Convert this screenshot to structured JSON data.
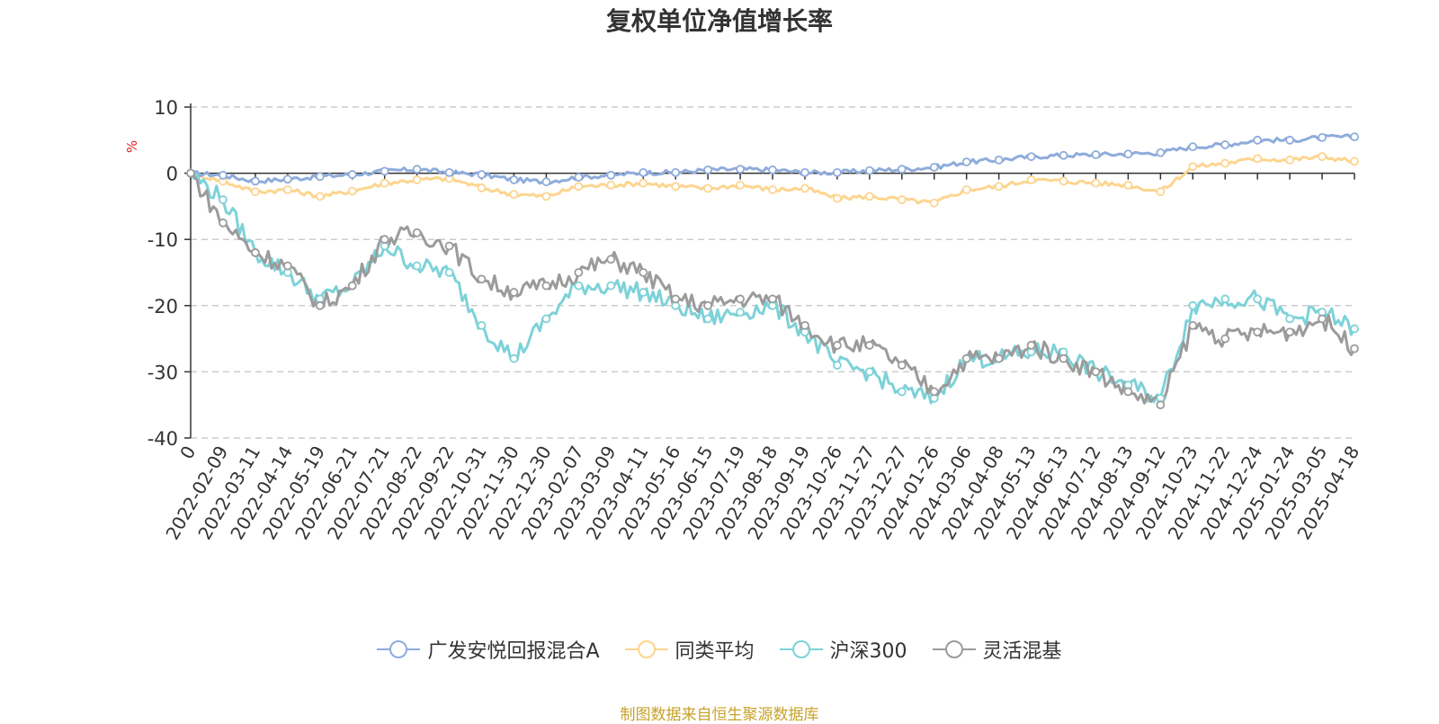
{
  "chart_data": {
    "type": "line",
    "title": "复权单位净值增长率",
    "ylabel": "%",
    "ylim": [
      -40,
      10
    ],
    "yticks": [
      10,
      0,
      -10,
      -20,
      -30,
      -40
    ],
    "grid": true,
    "legend_position": "bottom",
    "x_tick_labels": [
      "0",
      "2022-02-09",
      "2022-03-11",
      "2022-04-14",
      "2022-05-19",
      "2022-06-21",
      "2022-07-21",
      "2022-08-22",
      "2022-09-22",
      "2022-10-31",
      "2022-11-30",
      "2022-12-30",
      "2023-02-07",
      "2023-03-09",
      "2023-04-11",
      "2023-05-16",
      "2023-06-15",
      "2023-07-19",
      "2023-08-18",
      "2023-09-19",
      "2023-10-26",
      "2023-11-27",
      "2023-12-27",
      "2024-01-26",
      "2024-03-06",
      "2024-04-08",
      "2024-05-13",
      "2024-06-13",
      "2024-07-12",
      "2024-08-13",
      "2024-09-12",
      "2024-10-23",
      "2024-11-22",
      "2024-12-24",
      "2025-01-24",
      "2025-03-05",
      "2025-04-18"
    ],
    "series": [
      {
        "name": "广发安悦回报混合A",
        "color": "#8eacdb",
        "values": [
          0,
          -0.3,
          -1.2,
          -0.9,
          -0.5,
          -0.2,
          0.3,
          0.6,
          0.1,
          -0.2,
          -1.0,
          -1.3,
          -0.6,
          -0.3,
          0.1,
          0.1,
          0.5,
          0.6,
          0.5,
          0.1,
          0.1,
          0.4,
          0.6,
          0.9,
          1.7,
          2.0,
          2.5,
          2.7,
          2.8,
          2.9,
          3.1,
          4.0,
          4.3,
          5.0,
          5.0,
          5.4,
          5.5
        ]
      },
      {
        "name": "同类平均",
        "color": "#fcd58f",
        "values": [
          0,
          -1.2,
          -2.8,
          -2.5,
          -3.5,
          -2.7,
          -1.5,
          -1.0,
          -0.8,
          -2.2,
          -3.2,
          -3.5,
          -2.0,
          -1.8,
          -1.5,
          -2.0,
          -2.3,
          -1.8,
          -2.5,
          -2.3,
          -3.8,
          -3.5,
          -4.0,
          -4.5,
          -2.5,
          -2.0,
          -1.0,
          -1.2,
          -1.5,
          -1.8,
          -2.8,
          1.0,
          1.5,
          2.2,
          2.0,
          2.5,
          1.8
        ]
      },
      {
        "name": "沪深300",
        "color": "#7dd2d8",
        "values": [
          0,
          -4,
          -12,
          -15,
          -19,
          -17,
          -11,
          -14,
          -15,
          -23,
          -28,
          -22,
          -17,
          -17,
          -18,
          -20,
          -22,
          -21,
          -20,
          -24,
          -29,
          -30,
          -33,
          -34,
          -28,
          -28,
          -27,
          -27,
          -30,
          -32,
          -34,
          -20,
          -19,
          -19,
          -22,
          -21,
          -23.5
        ]
      },
      {
        "name": "灵活混基",
        "color": "#9b9b9b",
        "values": [
          0,
          -7.5,
          -12,
          -14,
          -20,
          -17,
          -10,
          -9,
          -11,
          -16,
          -18,
          -17,
          -15,
          -13,
          -15,
          -19,
          -20,
          -19,
          -19,
          -23,
          -26,
          -26,
          -29,
          -33,
          -28,
          -28,
          -26,
          -28,
          -30,
          -33,
          -35,
          -23,
          -25,
          -24,
          -24,
          -22,
          -26.5
        ]
      }
    ]
  },
  "legend": {
    "items": [
      "广发安悦回报混合A",
      "同类平均",
      "沪深300",
      "灵活混基"
    ]
  },
  "source_text": "制图数据来自恒生聚源数据库",
  "colors": {
    "title": "#333333",
    "axis_unit": "#e02020",
    "source": "#c8a22a",
    "grid": "#cccccc"
  }
}
